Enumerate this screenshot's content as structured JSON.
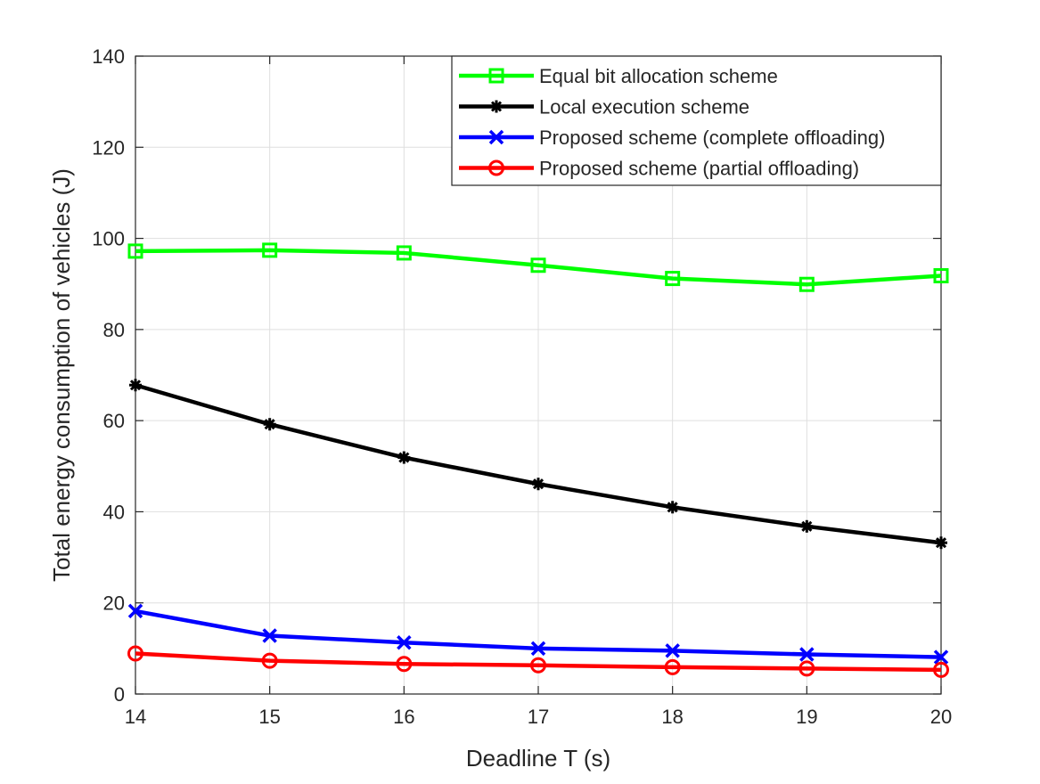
{
  "chart_data": {
    "type": "line",
    "title": "",
    "xlabel": "Deadline T (s)",
    "ylabel": "Total energy consumption of vehicles (J)",
    "xlim": [
      14,
      20
    ],
    "ylim": [
      0,
      140
    ],
    "grid": true,
    "legend_position": "top-right",
    "x": [
      14,
      15,
      16,
      17,
      18,
      19,
      20
    ],
    "x_ticks": [
      14,
      15,
      16,
      17,
      18,
      19,
      20
    ],
    "y_ticks": [
      0,
      20,
      40,
      60,
      80,
      100,
      120,
      140
    ],
    "series": [
      {
        "name": "Equal bit allocation scheme",
        "color": "#00ff00",
        "marker": "square",
        "values": [
          97.2,
          97.4,
          96.8,
          94.1,
          91.2,
          89.9,
          91.8
        ]
      },
      {
        "name": "Local execution scheme",
        "color": "#000000",
        "marker": "asterisk",
        "values": [
          67.8,
          59.2,
          51.9,
          46.1,
          41.0,
          36.8,
          33.2
        ]
      },
      {
        "name": "Proposed scheme (complete offloading)",
        "color": "#0000ff",
        "marker": "x",
        "values": [
          18.2,
          12.8,
          11.3,
          10.0,
          9.5,
          8.7,
          8.1
        ]
      },
      {
        "name": "Proposed scheme (partial offloading)",
        "color": "#ff0000",
        "marker": "circle",
        "values": [
          8.9,
          7.3,
          6.6,
          6.3,
          5.9,
          5.6,
          5.3
        ]
      }
    ]
  }
}
